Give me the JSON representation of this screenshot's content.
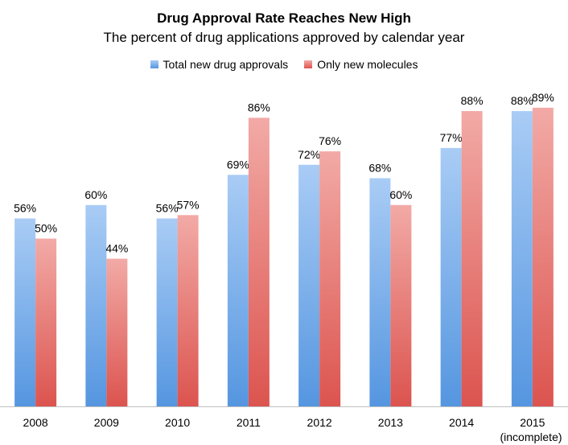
{
  "chart_data": {
    "type": "bar",
    "title": "Drug Approval Rate Reaches New High",
    "subtitle": "The percent of drug applications approved by calendar year",
    "categories": [
      "2008",
      "2009",
      "2010",
      "2011",
      "2012",
      "2013",
      "2014",
      "2015"
    ],
    "category_sublabels": [
      "",
      "",
      "",
      "",
      "",
      "",
      "",
      "(incomplete)"
    ],
    "series": [
      {
        "name": "Total new drug approvals",
        "values": [
          56,
          60,
          56,
          69,
          72,
          68,
          77,
          88
        ],
        "labels": [
          "56%",
          "60%",
          "56%",
          "69%",
          "72%",
          "68%",
          "77%",
          "88%"
        ],
        "color_top": "#a9ccf5",
        "color_bottom": "#5596e0"
      },
      {
        "name": "Only new molecules",
        "values": [
          50,
          44,
          57,
          86,
          76,
          60,
          88,
          89
        ],
        "labels": [
          "50%",
          "44%",
          "57%",
          "86%",
          "76%",
          "60%",
          "88%",
          "89%"
        ],
        "color_top": "#f2aaa6",
        "color_bottom": "#dc544f"
      }
    ],
    "ylim": [
      0,
      100
    ],
    "grid": false,
    "legend_position": "top"
  }
}
